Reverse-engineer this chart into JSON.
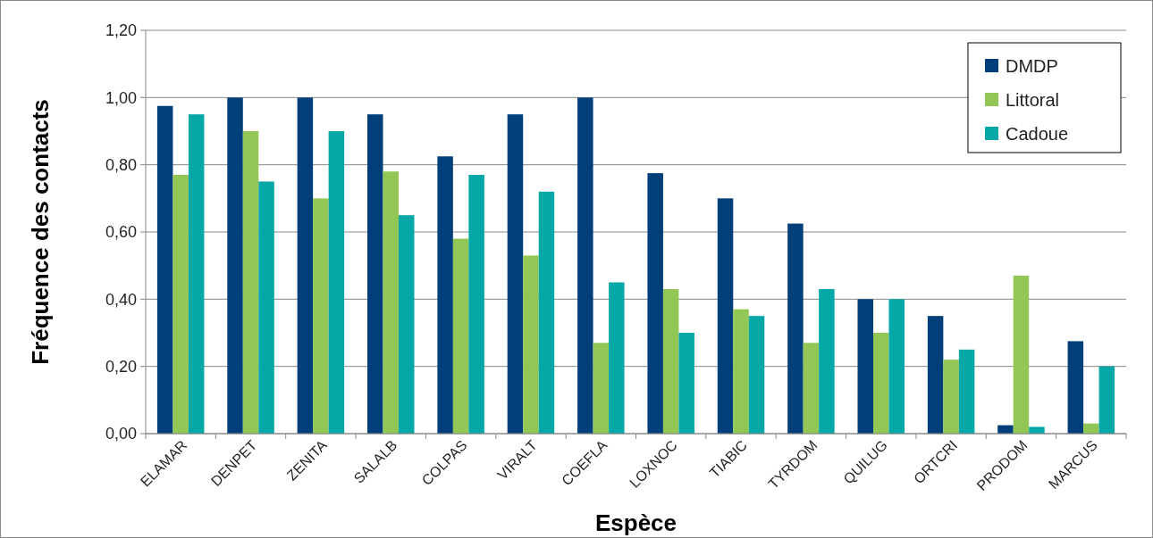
{
  "chart_data": {
    "type": "bar",
    "xlabel": "Espèce",
    "ylabel": "Fréquence des contacts",
    "categories": [
      "ELAMAR",
      "DENPET",
      "ZENITA",
      "SALALB",
      "COLPAS",
      "VIRALT",
      "COEFLA",
      "LOXNOC",
      "TIABIC",
      "TYRDOM",
      "QUILUG",
      "ORTCRI",
      "PRODOM",
      "MARCUS"
    ],
    "series": [
      {
        "name": "DMDP",
        "color": "#003f7a",
        "values": [
          0.975,
          1.0,
          1.0,
          0.95,
          0.825,
          0.95,
          1.0,
          0.775,
          0.7,
          0.625,
          0.4,
          0.35,
          0.025,
          0.275
        ]
      },
      {
        "name": "Littoral",
        "color": "#92c756",
        "values": [
          0.77,
          0.9,
          0.7,
          0.78,
          0.58,
          0.53,
          0.27,
          0.43,
          0.37,
          0.27,
          0.3,
          0.22,
          0.47,
          0.03
        ]
      },
      {
        "name": "Cadoue",
        "color": "#05a8a6",
        "values": [
          0.95,
          0.75,
          0.9,
          0.65,
          0.77,
          0.72,
          0.45,
          0.3,
          0.35,
          0.43,
          0.4,
          0.25,
          0.02,
          0.2
        ]
      }
    ],
    "ylim": [
      0,
      1.2
    ],
    "yticks": [
      {
        "value": 0,
        "label": "0,00"
      },
      {
        "value": 0.2,
        "label": "0,20"
      },
      {
        "value": 0.4,
        "label": "0,40"
      },
      {
        "value": 0.6,
        "label": "0,60"
      },
      {
        "value": 0.8,
        "label": "0,80"
      },
      {
        "value": 1,
        "label": "1,00"
      },
      {
        "value": 1.2,
        "label": "1,20"
      }
    ],
    "grid": "y",
    "legend": "top right"
  }
}
